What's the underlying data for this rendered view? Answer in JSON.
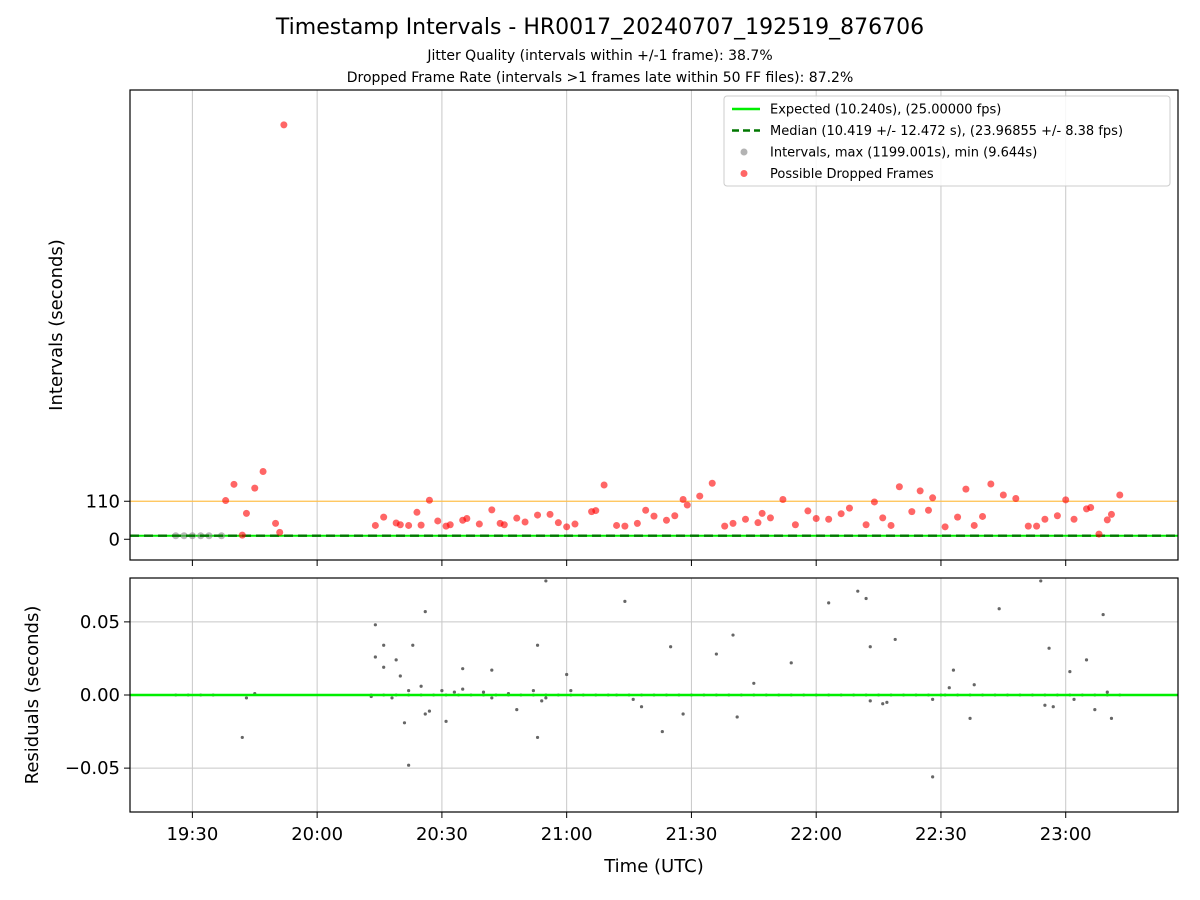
{
  "figure": {
    "title": "Timestamp Intervals - HR0017_20240707_192519_876706",
    "subtitle1": "Jitter Quality (intervals within +/-1 frame): 38.7%",
    "subtitle2": "Dropped Frame Rate (intervals >1 frames late within 50 FF files): 87.2%"
  },
  "colors": {
    "expected": "#00ee00",
    "median": "#007700",
    "intervals": "#808080",
    "dropped": "#ff0000",
    "threshold": "#ffc04d",
    "grid": "#c8c8c8"
  },
  "chart_data": [
    {
      "type": "scatter",
      "panel": "intervals",
      "xlabel": "",
      "ylabel": "Intervals (seconds)",
      "xlim": [
        "19:15",
        "23:27"
      ],
      "ylim": [
        -60,
        1300
      ],
      "yticks": [
        0,
        110
      ],
      "grid": "x-only",
      "legend_position": "top-right",
      "legend": [
        "Expected (10.240s), (25.00000 fps)",
        "Median (10.419 +/- 12.472 s), (23.96855 +/- 8.38 fps)",
        "Intervals, max (1199.001s), min (9.644s)",
        "Possible Dropped Frames"
      ],
      "expected_line": 10.24,
      "median_line": 10.419,
      "threshold_line": 110,
      "interval_samples": [
        {
          "x": "19:26",
          "y": 10.24
        },
        {
          "x": "19:28",
          "y": 10.24
        },
        {
          "x": "19:30",
          "y": 10.24
        },
        {
          "x": "19:32",
          "y": 10.24
        },
        {
          "x": "19:34",
          "y": 10.24
        },
        {
          "x": "19:37",
          "y": 10.24
        }
      ],
      "series": [
        {
          "name": "Possible Dropped Frames",
          "points": [
            {
              "x": "19:38",
              "y": 112
            },
            {
              "x": "19:40",
              "y": 159
            },
            {
              "x": "19:42",
              "y": 12
            },
            {
              "x": "19:43",
              "y": 75
            },
            {
              "x": "19:45",
              "y": 148
            },
            {
              "x": "19:47",
              "y": 196
            },
            {
              "x": "19:50",
              "y": 46
            },
            {
              "x": "19:51",
              "y": 20
            },
            {
              "x": "19:52",
              "y": 1199
            },
            {
              "x": "20:14",
              "y": 40
            },
            {
              "x": "20:16",
              "y": 64
            },
            {
              "x": "20:19",
              "y": 47
            },
            {
              "x": "20:20",
              "y": 42
            },
            {
              "x": "20:22",
              "y": 40
            },
            {
              "x": "20:24",
              "y": 78
            },
            {
              "x": "20:25",
              "y": 41
            },
            {
              "x": "20:27",
              "y": 113
            },
            {
              "x": "20:29",
              "y": 53
            },
            {
              "x": "20:31",
              "y": 38
            },
            {
              "x": "20:32",
              "y": 42
            },
            {
              "x": "20:35",
              "y": 55
            },
            {
              "x": "20:36",
              "y": 60
            },
            {
              "x": "20:39",
              "y": 44
            },
            {
              "x": "20:42",
              "y": 85
            },
            {
              "x": "20:44",
              "y": 46
            },
            {
              "x": "20:45",
              "y": 42
            },
            {
              "x": "20:48",
              "y": 61
            },
            {
              "x": "20:50",
              "y": 50
            },
            {
              "x": "20:53",
              "y": 70
            },
            {
              "x": "20:56",
              "y": 72
            },
            {
              "x": "20:58",
              "y": 48
            },
            {
              "x": "21:00",
              "y": 36
            },
            {
              "x": "21:02",
              "y": 44
            },
            {
              "x": "21:06",
              "y": 80
            },
            {
              "x": "21:07",
              "y": 83
            },
            {
              "x": "21:09",
              "y": 157
            },
            {
              "x": "21:12",
              "y": 40
            },
            {
              "x": "21:14",
              "y": 38
            },
            {
              "x": "21:17",
              "y": 46
            },
            {
              "x": "21:19",
              "y": 84
            },
            {
              "x": "21:21",
              "y": 67
            },
            {
              "x": "21:24",
              "y": 55
            },
            {
              "x": "21:26",
              "y": 68
            },
            {
              "x": "21:28",
              "y": 115
            },
            {
              "x": "21:29",
              "y": 99
            },
            {
              "x": "21:32",
              "y": 125
            },
            {
              "x": "21:35",
              "y": 162
            },
            {
              "x": "21:38",
              "y": 38
            },
            {
              "x": "21:40",
              "y": 46
            },
            {
              "x": "21:43",
              "y": 58
            },
            {
              "x": "21:46",
              "y": 48
            },
            {
              "x": "21:47",
              "y": 75
            },
            {
              "x": "21:49",
              "y": 62
            },
            {
              "x": "21:52",
              "y": 115
            },
            {
              "x": "21:55",
              "y": 42
            },
            {
              "x": "21:58",
              "y": 82
            },
            {
              "x": "22:00",
              "y": 60
            },
            {
              "x": "22:03",
              "y": 58
            },
            {
              "x": "22:06",
              "y": 74
            },
            {
              "x": "22:08",
              "y": 90
            },
            {
              "x": "22:12",
              "y": 42
            },
            {
              "x": "22:14",
              "y": 108
            },
            {
              "x": "22:16",
              "y": 62
            },
            {
              "x": "22:18",
              "y": 40
            },
            {
              "x": "22:20",
              "y": 152
            },
            {
              "x": "22:23",
              "y": 80
            },
            {
              "x": "22:25",
              "y": 140
            },
            {
              "x": "22:27",
              "y": 84
            },
            {
              "x": "22:28",
              "y": 120
            },
            {
              "x": "22:31",
              "y": 36
            },
            {
              "x": "22:34",
              "y": 64
            },
            {
              "x": "22:36",
              "y": 145
            },
            {
              "x": "22:38",
              "y": 40
            },
            {
              "x": "22:40",
              "y": 66
            },
            {
              "x": "22:42",
              "y": 160
            },
            {
              "x": "22:45",
              "y": 128
            },
            {
              "x": "22:48",
              "y": 118
            },
            {
              "x": "22:51",
              "y": 38
            },
            {
              "x": "22:53",
              "y": 38
            },
            {
              "x": "22:55",
              "y": 58
            },
            {
              "x": "22:58",
              "y": 68
            },
            {
              "x": "23:00",
              "y": 114
            },
            {
              "x": "23:02",
              "y": 58
            },
            {
              "x": "23:05",
              "y": 88
            },
            {
              "x": "23:06",
              "y": 92
            },
            {
              "x": "23:08",
              "y": 15
            },
            {
              "x": "23:10",
              "y": 56
            },
            {
              "x": "23:11",
              "y": 72
            },
            {
              "x": "23:13",
              "y": 128
            }
          ]
        }
      ]
    },
    {
      "type": "scatter",
      "panel": "residuals",
      "xlabel": "Time (UTC)",
      "ylabel": "Residuals (seconds)",
      "xlim": [
        "19:15",
        "23:27"
      ],
      "ylim": [
        -0.08,
        0.08
      ],
      "x_ticks": [
        "19:30",
        "20:00",
        "20:30",
        "21:00",
        "21:30",
        "22:00",
        "22:30",
        "23:00"
      ],
      "y_ticks": [
        "0.05",
        "0.00",
        "−0.05"
      ],
      "y_tick_values": [
        0.05,
        0.0,
        -0.05
      ],
      "grid": "on",
      "zero_line": 0.0,
      "series": [
        {
          "points": [
            {
              "x": "19:42",
              "y": -0.029
            },
            {
              "x": "19:43",
              "y": -0.002
            },
            {
              "x": "19:45",
              "y": 0.001
            },
            {
              "x": "20:13",
              "y": -0.001
            },
            {
              "x": "20:14",
              "y": 0.048
            },
            {
              "x": "20:14",
              "y": 0.026
            },
            {
              "x": "20:16",
              "y": 0.034
            },
            {
              "x": "20:16",
              "y": 0.019
            },
            {
              "x": "20:18",
              "y": -0.002
            },
            {
              "x": "20:19",
              "y": 0.024
            },
            {
              "x": "20:20",
              "y": 0.013
            },
            {
              "x": "20:21",
              "y": -0.019
            },
            {
              "x": "20:22",
              "y": -0.048
            },
            {
              "x": "20:22",
              "y": 0.003
            },
            {
              "x": "20:23",
              "y": 0.034
            },
            {
              "x": "20:25",
              "y": 0.006
            },
            {
              "x": "20:26",
              "y": -0.013
            },
            {
              "x": "20:26",
              "y": 0.057
            },
            {
              "x": "20:27",
              "y": -0.011
            },
            {
              "x": "20:30",
              "y": 0.003
            },
            {
              "x": "20:31",
              "y": -0.018
            },
            {
              "x": "20:33",
              "y": 0.002
            },
            {
              "x": "20:35",
              "y": 0.018
            },
            {
              "x": "20:35",
              "y": 0.004
            },
            {
              "x": "20:40",
              "y": 0.002
            },
            {
              "x": "20:42",
              "y": 0.017
            },
            {
              "x": "20:42",
              "y": -0.002
            },
            {
              "x": "20:46",
              "y": 0.001
            },
            {
              "x": "20:48",
              "y": -0.01
            },
            {
              "x": "20:52",
              "y": 0.003
            },
            {
              "x": "20:53",
              "y": -0.029
            },
            {
              "x": "20:53",
              "y": 0.034
            },
            {
              "x": "20:54",
              "y": -0.004
            },
            {
              "x": "20:55",
              "y": -0.002
            },
            {
              "x": "20:55",
              "y": 0.078
            },
            {
              "x": "21:00",
              "y": 0.014
            },
            {
              "x": "21:01",
              "y": 0.003
            },
            {
              "x": "21:14",
              "y": 0.064
            },
            {
              "x": "21:16",
              "y": -0.003
            },
            {
              "x": "21:18",
              "y": -0.008
            },
            {
              "x": "21:23",
              "y": -0.025
            },
            {
              "x": "21:25",
              "y": 0.033
            },
            {
              "x": "21:28",
              "y": -0.013
            },
            {
              "x": "21:36",
              "y": 0.028
            },
            {
              "x": "21:40",
              "y": 0.041
            },
            {
              "x": "21:41",
              "y": -0.015
            },
            {
              "x": "21:45",
              "y": 0.008
            },
            {
              "x": "21:54",
              "y": 0.022
            },
            {
              "x": "22:03",
              "y": 0.063
            },
            {
              "x": "22:10",
              "y": 0.071
            },
            {
              "x": "22:12",
              "y": 0.066
            },
            {
              "x": "22:13",
              "y": 0.033
            },
            {
              "x": "22:13",
              "y": -0.004
            },
            {
              "x": "22:16",
              "y": -0.006
            },
            {
              "x": "22:17",
              "y": -0.005
            },
            {
              "x": "22:19",
              "y": 0.038
            },
            {
              "x": "22:28",
              "y": -0.056
            },
            {
              "x": "22:28",
              "y": -0.003
            },
            {
              "x": "22:32",
              "y": 0.005
            },
            {
              "x": "22:33",
              "y": 0.017
            },
            {
              "x": "22:37",
              "y": -0.016
            },
            {
              "x": "22:38",
              "y": 0.007
            },
            {
              "x": "22:44",
              "y": 0.059
            },
            {
              "x": "22:54",
              "y": 0.078
            },
            {
              "x": "22:55",
              "y": -0.007
            },
            {
              "x": "22:56",
              "y": 0.032
            },
            {
              "x": "22:57",
              "y": -0.008
            },
            {
              "x": "23:01",
              "y": 0.016
            },
            {
              "x": "23:02",
              "y": -0.003
            },
            {
              "x": "23:05",
              "y": 0.024
            },
            {
              "x": "23:07",
              "y": -0.01
            },
            {
              "x": "23:09",
              "y": 0.055
            },
            {
              "x": "23:10",
              "y": 0.002
            },
            {
              "x": "23:11",
              "y": -0.016
            }
          ]
        }
      ]
    }
  ]
}
